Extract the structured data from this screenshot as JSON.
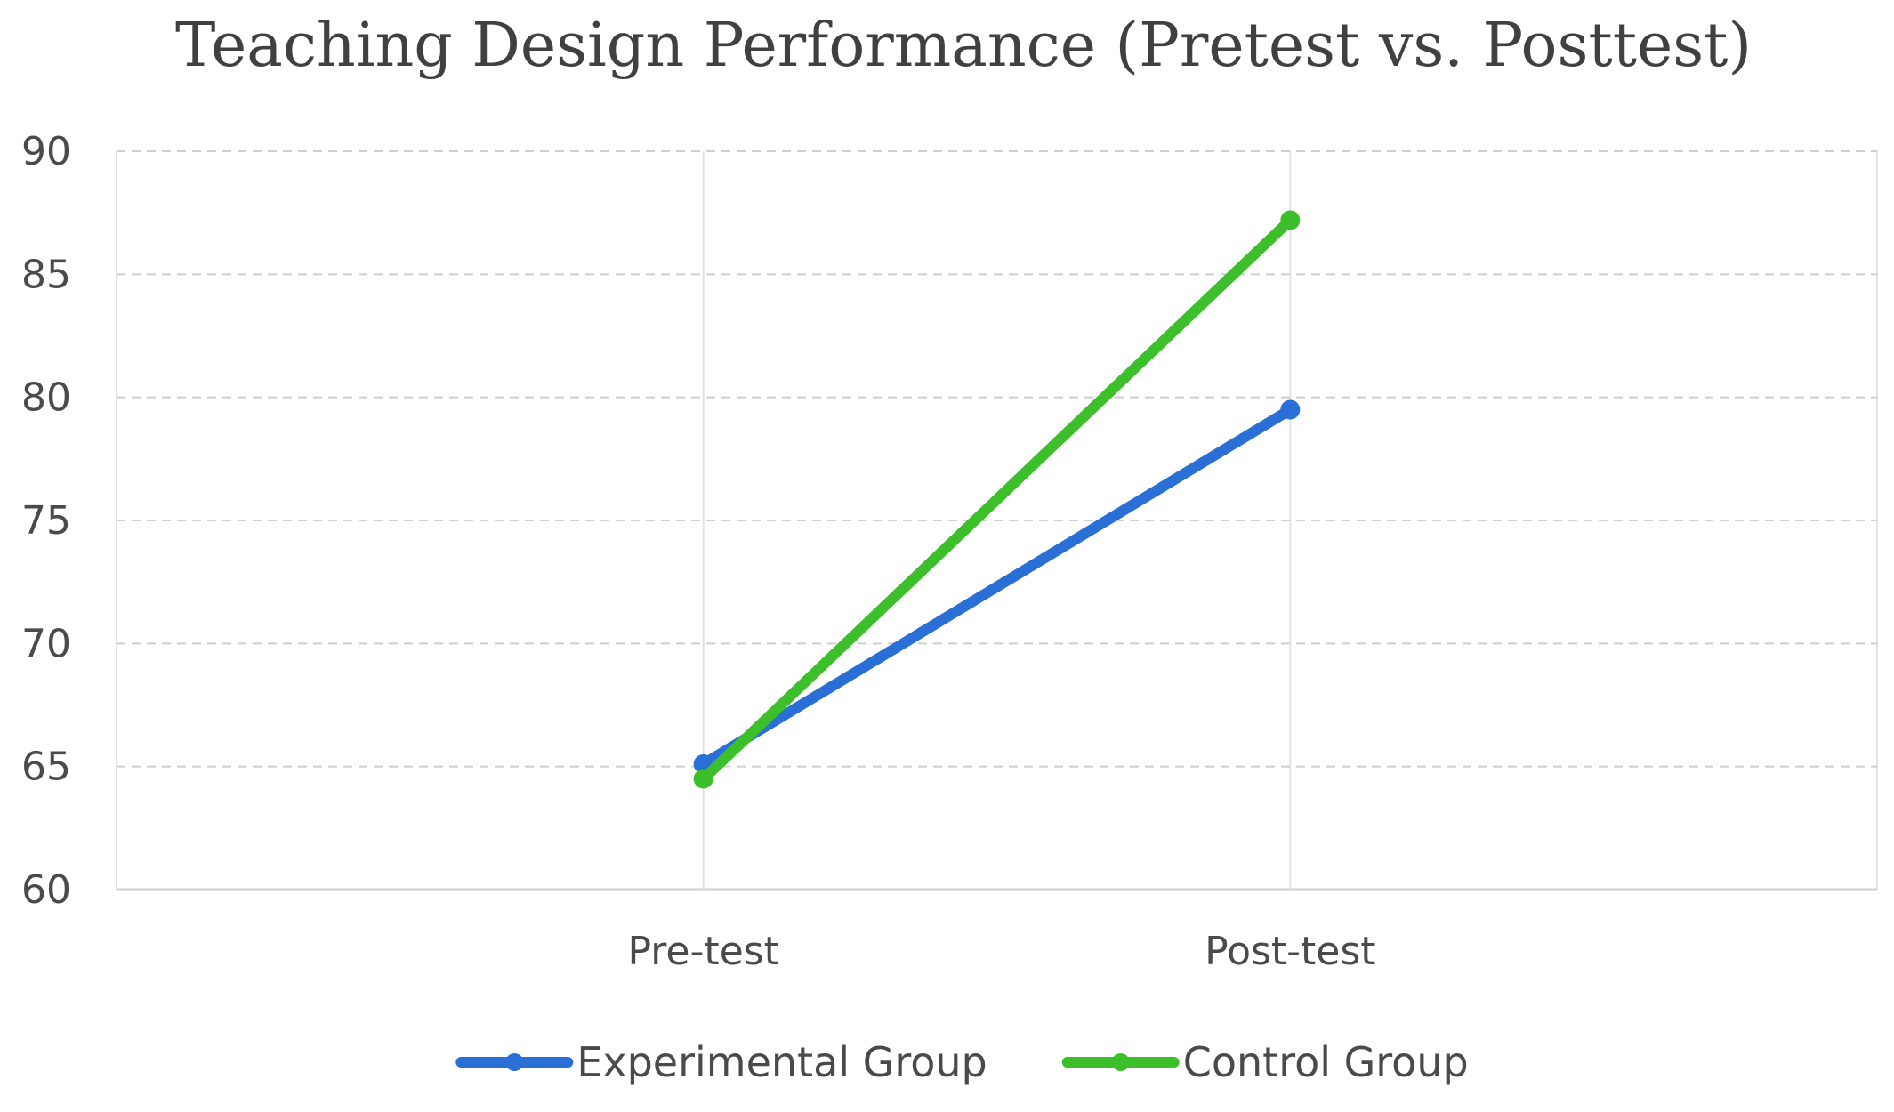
{
  "chart_data": {
    "type": "line",
    "title": "Teaching Design Performance (Pretest vs. Posttest)",
    "xlabel": "",
    "ylabel": "",
    "categories": [
      "Pre-test",
      "Post-test"
    ],
    "ylim": [
      60,
      90
    ],
    "yticks": [
      60,
      65,
      70,
      75,
      80,
      85,
      90
    ],
    "grid": true,
    "legend_position": "bottom",
    "series": [
      {
        "name": "Experimental Group",
        "values": [
          65.1,
          79.5
        ],
        "color": "#2a6fd6"
      },
      {
        "name": "Control Group",
        "values": [
          64.5,
          87.2
        ],
        "color": "#3cbf2a"
      }
    ]
  }
}
